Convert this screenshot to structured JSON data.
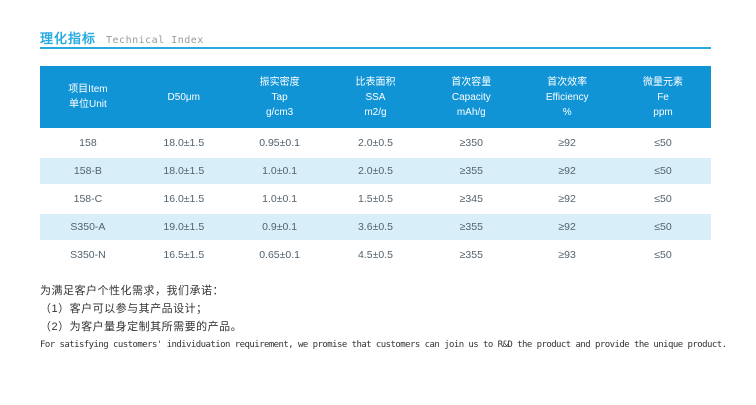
{
  "section_header": {
    "title_zh": "理化指标",
    "title_en": "Technical Index"
  },
  "table": {
    "columns": [
      {
        "id": "item",
        "lines": [
          "项目Item",
          "单位Unit"
        ]
      },
      {
        "id": "d50",
        "lines": [
          "D50μm"
        ]
      },
      {
        "id": "tap-density",
        "lines": [
          "振实密度",
          "Tap",
          "g/cm3"
        ]
      },
      {
        "id": "ssa",
        "lines": [
          "比表面积",
          "SSA",
          "m2/g"
        ]
      },
      {
        "id": "capacity",
        "lines": [
          "首次容量",
          "Capacity",
          "mAh/g"
        ]
      },
      {
        "id": "efficiency",
        "lines": [
          "首次效率",
          "Efficiency",
          "%"
        ]
      },
      {
        "id": "trace-fe",
        "lines": [
          "微量元素",
          "Fe",
          "ppm"
        ]
      }
    ],
    "rows": [
      [
        "158",
        "18.0±1.5",
        "0.95±0.1",
        "2.0±0.5",
        "≥350",
        "≥92",
        "≤50"
      ],
      [
        "158-B",
        "18.0±1.5",
        "1.0±0.1",
        "2.0±0.5",
        "≥355",
        "≥92",
        "≤50"
      ],
      [
        "158-C",
        "16.0±1.5",
        "1.0±0.1",
        "1.5±0.5",
        "≥345",
        "≥92",
        "≤50"
      ],
      [
        "S350-A",
        "19.0±1.5",
        "0.9±0.1",
        "3.6±0.5",
        "≥355",
        "≥92",
        "≤50"
      ],
      [
        "S350-N",
        "16.5±1.5",
        "0.65±0.1",
        "4.5±0.5",
        "≥355",
        "≥93",
        "≤50"
      ]
    ]
  },
  "notes": {
    "line1_zh": "为满足客户个性化需求，我们承诺：",
    "line2_zh": "（1）客户可以参与其产品设计；",
    "line3_zh": "（2）为客户量身定制其所需要的产品。",
    "line_en": "For satisfying customers' individuation requirement, we promise that customers can join us to R&D the product and provide the unique product."
  },
  "colors": {
    "accent_blue": "#29a8e0",
    "header_blue": "#1094d6",
    "stripe_blue": "#d8eef9",
    "title_gray": "#9a9a9a",
    "cell_text": "#52626e",
    "body_text": "#333333"
  }
}
